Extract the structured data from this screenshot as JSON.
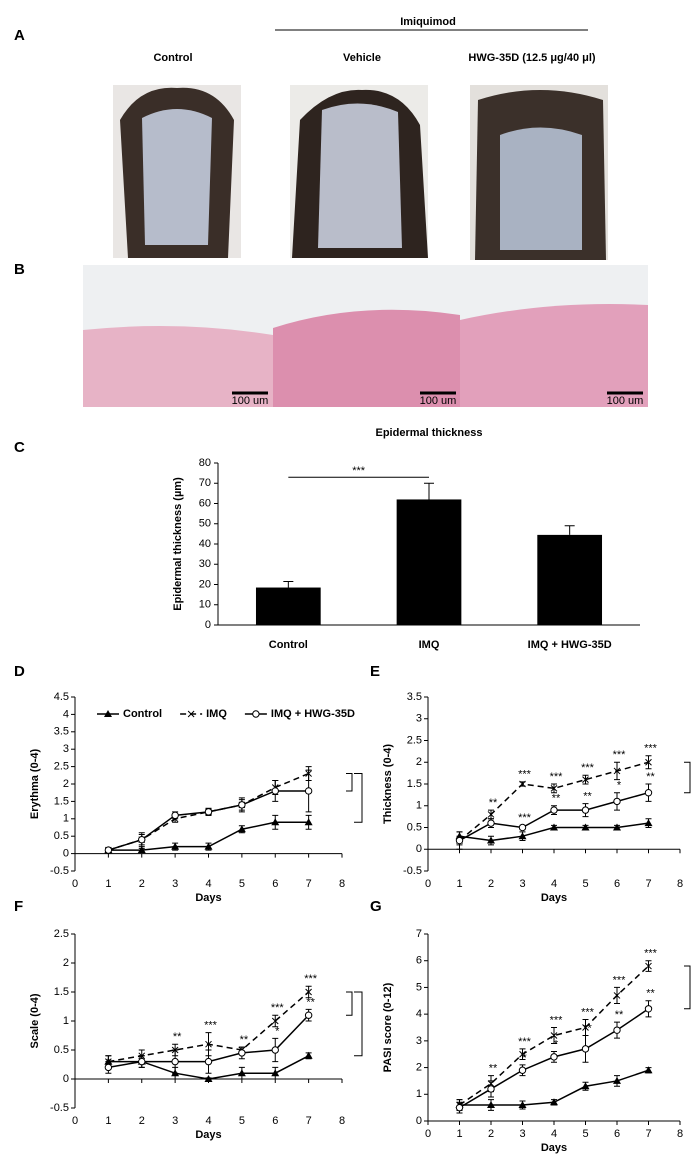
{
  "figure": {
    "panels": [
      "A",
      "B"
    ],
    "treatment": "Imiquimod",
    "photo_labels": [
      "Control",
      "Vehicle",
      "HWG-35D (12.5 μg/40 μl)"
    ],
    "scale_bars": [
      "100 um",
      "100 um",
      "100 um"
    ]
  },
  "chart_data": [
    {
      "type": "bar",
      "panel": "C",
      "title": "Epidermal thickness",
      "ylabel": "Epidermal thickness (µm)",
      "categories": [
        "Control",
        "IMQ",
        "IMQ + HWG-35D"
      ],
      "values": [
        18.5,
        62,
        44.5
      ],
      "errors": [
        3,
        8,
        4.5
      ],
      "significance": [
        null,
        "***",
        null
      ],
      "color": "#000000",
      "ylim": [
        0,
        80
      ],
      "yticks": [
        0,
        10,
        20,
        30,
        40,
        50,
        60,
        70,
        80
      ]
    },
    {
      "type": "line",
      "panel": "D",
      "ylabel": "Erythma (0-4)",
      "xlabel": "Days",
      "legend": true,
      "x": [
        1,
        2,
        3,
        4,
        5,
        6,
        7
      ],
      "xlim": [
        0,
        8
      ],
      "xticks": [
        0,
        1,
        2,
        3,
        4,
        5,
        6,
        7,
        8
      ],
      "ylim": [
        -0.5,
        4.5
      ],
      "yticks": [
        -0.5,
        0,
        0.5,
        1,
        1.5,
        2,
        2.5,
        3,
        3.5,
        4,
        4.5
      ],
      "series": [
        {
          "name": "Control",
          "color": "#000000",
          "marker": "triangle",
          "dash": false,
          "values": [
            0.1,
            0.1,
            0.2,
            0.2,
            0.7,
            0.9,
            0.9
          ],
          "errors": [
            0.05,
            0.05,
            0.1,
            0.1,
            0.1,
            0.2,
            0.2
          ]
        },
        {
          "name": "IMQ",
          "color": "#000000",
          "marker": "x",
          "dash": true,
          "values": [
            0.1,
            0.4,
            1.0,
            1.2,
            1.4,
            1.9,
            2.3
          ],
          "errors": [
            0.05,
            0.2,
            0.1,
            0.1,
            0.15,
            0.2,
            0.2
          ]
        },
        {
          "name": "IMQ + HWG-35D",
          "color": "#000000",
          "marker": "circle",
          "dash": false,
          "values": [
            0.1,
            0.4,
            1.1,
            1.2,
            1.4,
            1.8,
            1.8
          ],
          "errors": [
            0.05,
            0.15,
            0.1,
            0.1,
            0.2,
            0.3,
            0.6
          ]
        }
      ]
    },
    {
      "type": "line",
      "panel": "E",
      "ylabel": "Thickness (0-4)",
      "xlabel": "Days",
      "legend": false,
      "x": [
        1,
        2,
        3,
        4,
        5,
        6,
        7
      ],
      "xlim": [
        0,
        8
      ],
      "xticks": [
        0,
        1,
        2,
        3,
        4,
        5,
        6,
        7,
        8
      ],
      "ylim": [
        -0.5,
        3.5
      ],
      "yticks": [
        -0.5,
        0,
        0.5,
        1,
        1.5,
        2,
        2.5,
        3,
        3.5
      ],
      "series": [
        {
          "name": "Control",
          "color": "#000000",
          "marker": "triangle",
          "dash": false,
          "values": [
            0.3,
            0.2,
            0.3,
            0.5,
            0.5,
            0.5,
            0.6
          ],
          "errors": [
            0.1,
            0.1,
            0.1,
            0.05,
            0.05,
            0.05,
            0.1
          ]
        },
        {
          "name": "IMQ",
          "color": "#000000",
          "marker": "x",
          "dash": true,
          "values": [
            0.2,
            0.8,
            1.5,
            1.4,
            1.6,
            1.8,
            2.0
          ],
          "errors": [
            0.2,
            0.1,
            0.05,
            0.1,
            0.1,
            0.2,
            0.15
          ],
          "significance": [
            null,
            "**",
            "***",
            "***",
            "***",
            "***",
            "***"
          ]
        },
        {
          "name": "IMQ + HWG-35D",
          "color": "#000000",
          "marker": "circle",
          "dash": false,
          "values": [
            0.2,
            0.6,
            0.5,
            0.9,
            0.9,
            1.1,
            1.3
          ],
          "errors": [
            0.1,
            0.1,
            0.05,
            0.1,
            0.15,
            0.2,
            0.2
          ],
          "significance": [
            null,
            null,
            "***",
            "**",
            "**",
            "*",
            "**"
          ]
        }
      ]
    },
    {
      "type": "line",
      "panel": "F",
      "ylabel": "Scale (0-4)",
      "xlabel": "Days",
      "legend": false,
      "x": [
        1,
        2,
        3,
        4,
        5,
        6,
        7
      ],
      "xlim": [
        0,
        8
      ],
      "xticks": [
        0,
        1,
        2,
        3,
        4,
        5,
        6,
        7,
        8
      ],
      "ylim": [
        -0.5,
        2.5
      ],
      "yticks": [
        -0.5,
        0,
        0.5,
        1,
        1.5,
        2,
        2.5
      ],
      "series": [
        {
          "name": "Control",
          "color": "#000000",
          "marker": "triangle",
          "dash": false,
          "values": [
            0.3,
            0.3,
            0.1,
            0.0,
            0.1,
            0.1,
            0.4
          ],
          "errors": [
            0.1,
            0.1,
            0.1,
            0.02,
            0.1,
            0.1,
            0.05
          ]
        },
        {
          "name": "IMQ",
          "color": "#000000",
          "marker": "x",
          "dash": true,
          "values": [
            0.3,
            0.4,
            0.5,
            0.6,
            0.5,
            1.0,
            1.5
          ],
          "errors": [
            0.1,
            0.1,
            0.1,
            0.2,
            0.05,
            0.1,
            0.1
          ],
          "significance": [
            null,
            null,
            "**",
            "***",
            "**",
            "***",
            "***"
          ]
        },
        {
          "name": "IMQ + HWG-35D",
          "color": "#000000",
          "marker": "circle",
          "dash": false,
          "values": [
            0.2,
            0.3,
            0.3,
            0.3,
            0.45,
            0.5,
            1.1
          ],
          "errors": [
            0.1,
            0.1,
            0.2,
            0.2,
            0.1,
            0.2,
            0.1
          ],
          "significance": [
            null,
            null,
            null,
            null,
            null,
            "*",
            "**"
          ]
        }
      ]
    },
    {
      "type": "line",
      "panel": "G",
      "ylabel": "PASI score (0-12)",
      "xlabel": "Days",
      "legend": false,
      "x": [
        1,
        2,
        3,
        4,
        5,
        6,
        7
      ],
      "xlim": [
        0,
        8
      ],
      "xticks": [
        0,
        1,
        2,
        3,
        4,
        5,
        6,
        7,
        8
      ],
      "ylim": [
        0,
        7
      ],
      "yticks": [
        0,
        1,
        2,
        3,
        4,
        5,
        6,
        7
      ],
      "series": [
        {
          "name": "Control",
          "color": "#000000",
          "marker": "triangle",
          "dash": false,
          "values": [
            0.6,
            0.6,
            0.6,
            0.7,
            1.3,
            1.5,
            1.9
          ],
          "errors": [
            0.2,
            0.2,
            0.15,
            0.1,
            0.15,
            0.2,
            0.1
          ]
        },
        {
          "name": "IMQ",
          "color": "#000000",
          "marker": "x",
          "dash": true,
          "values": [
            0.6,
            1.4,
            2.5,
            3.2,
            3.5,
            4.7,
            5.8
          ],
          "errors": [
            0.2,
            0.3,
            0.2,
            0.3,
            0.3,
            0.3,
            0.2
          ],
          "significance": [
            null,
            "**",
            "***",
            "***",
            "***",
            "***",
            "***"
          ]
        },
        {
          "name": "IMQ + HWG-35D",
          "color": "#000000",
          "marker": "circle",
          "dash": false,
          "values": [
            0.5,
            1.2,
            1.9,
            2.4,
            2.7,
            3.4,
            4.2
          ],
          "errors": [
            0.2,
            0.3,
            0.2,
            0.2,
            0.5,
            0.3,
            0.3
          ],
          "significance": [
            null,
            null,
            "*",
            "*",
            "**",
            "**",
            "**"
          ]
        }
      ]
    }
  ]
}
